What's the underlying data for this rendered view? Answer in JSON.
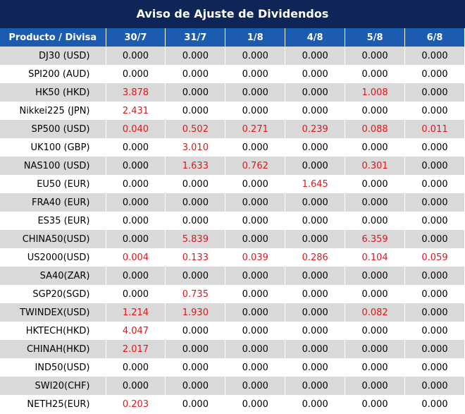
{
  "title": "Aviso de Ajuste de Dividendos",
  "table": {
    "header": [
      "Producto / Divisa",
      "30/7",
      "31/7",
      "1/8",
      "4/8",
      "5/8",
      "6/8"
    ],
    "rows": [
      [
        "DJ30 (USD)",
        "0.000",
        "0.000",
        "0.000",
        "0.000",
        "0.000",
        "0.000"
      ],
      [
        "SPI200 (AUD)",
        "0.000",
        "0.000",
        "0.000",
        "0.000",
        "0.000",
        "0.000"
      ],
      [
        "HK50 (HKD)",
        "3.878",
        "0.000",
        "0.000",
        "0.000",
        "1.008",
        "0.000"
      ],
      [
        "Nikkei225 (JPN)",
        "2.431",
        "0.000",
        "0.000",
        "0.000",
        "0.000",
        "0.000"
      ],
      [
        "SP500 (USD)",
        "0.040",
        "0.502",
        "0.271",
        "0.239",
        "0.088",
        "0.011"
      ],
      [
        "UK100 (GBP)",
        "0.000",
        "3.010",
        "0.000",
        "0.000",
        "0.000",
        "0.000"
      ],
      [
        "NAS100 (USD)",
        "0.000",
        "1.633",
        "0.762",
        "0.000",
        "0.301",
        "0.000"
      ],
      [
        "EU50 (EUR)",
        "0.000",
        "0.000",
        "0.000",
        "1.645",
        "0.000",
        "0.000"
      ],
      [
        "FRA40 (EUR)",
        "0.000",
        "0.000",
        "0.000",
        "0.000",
        "0.000",
        "0.000"
      ],
      [
        "ES35 (EUR)",
        "0.000",
        "0.000",
        "0.000",
        "0.000",
        "0.000",
        "0.000"
      ],
      [
        "CHINA50(USD)",
        "0.000",
        "5.839",
        "0.000",
        "0.000",
        "6.359",
        "0.000"
      ],
      [
        "US2000(USD)",
        "0.004",
        "0.133",
        "0.039",
        "0.286",
        "0.104",
        "0.059"
      ],
      [
        "SA40(ZAR)",
        "0.000",
        "0.000",
        "0.000",
        "0.000",
        "0.000",
        "0.000"
      ],
      [
        "SGP20(SGD)",
        "0.000",
        "0.735",
        "0.000",
        "0.000",
        "0.000",
        "0.000"
      ],
      [
        "TWINDEX(USD)",
        "1.214",
        "1.930",
        "0.000",
        "0.000",
        "0.082",
        "0.000"
      ],
      [
        "HKTECH(HKD)",
        "4.047",
        "0.000",
        "0.000",
        "0.000",
        "0.000",
        "0.000"
      ],
      [
        "CHINAH(HKD)",
        "2.017",
        "0.000",
        "0.000",
        "0.000",
        "0.000",
        "0.000"
      ],
      [
        "IND50(USD)",
        "0.000",
        "0.000",
        "0.000",
        "0.000",
        "0.000",
        "0.000"
      ],
      [
        "SWI20(CHF)",
        "0.000",
        "0.000",
        "0.000",
        "0.000",
        "0.000",
        "0.000"
      ],
      [
        "NETH25(EUR)",
        "0.203",
        "0.000",
        "0.000",
        "0.000",
        "0.000",
        "0.000"
      ]
    ]
  }
}
